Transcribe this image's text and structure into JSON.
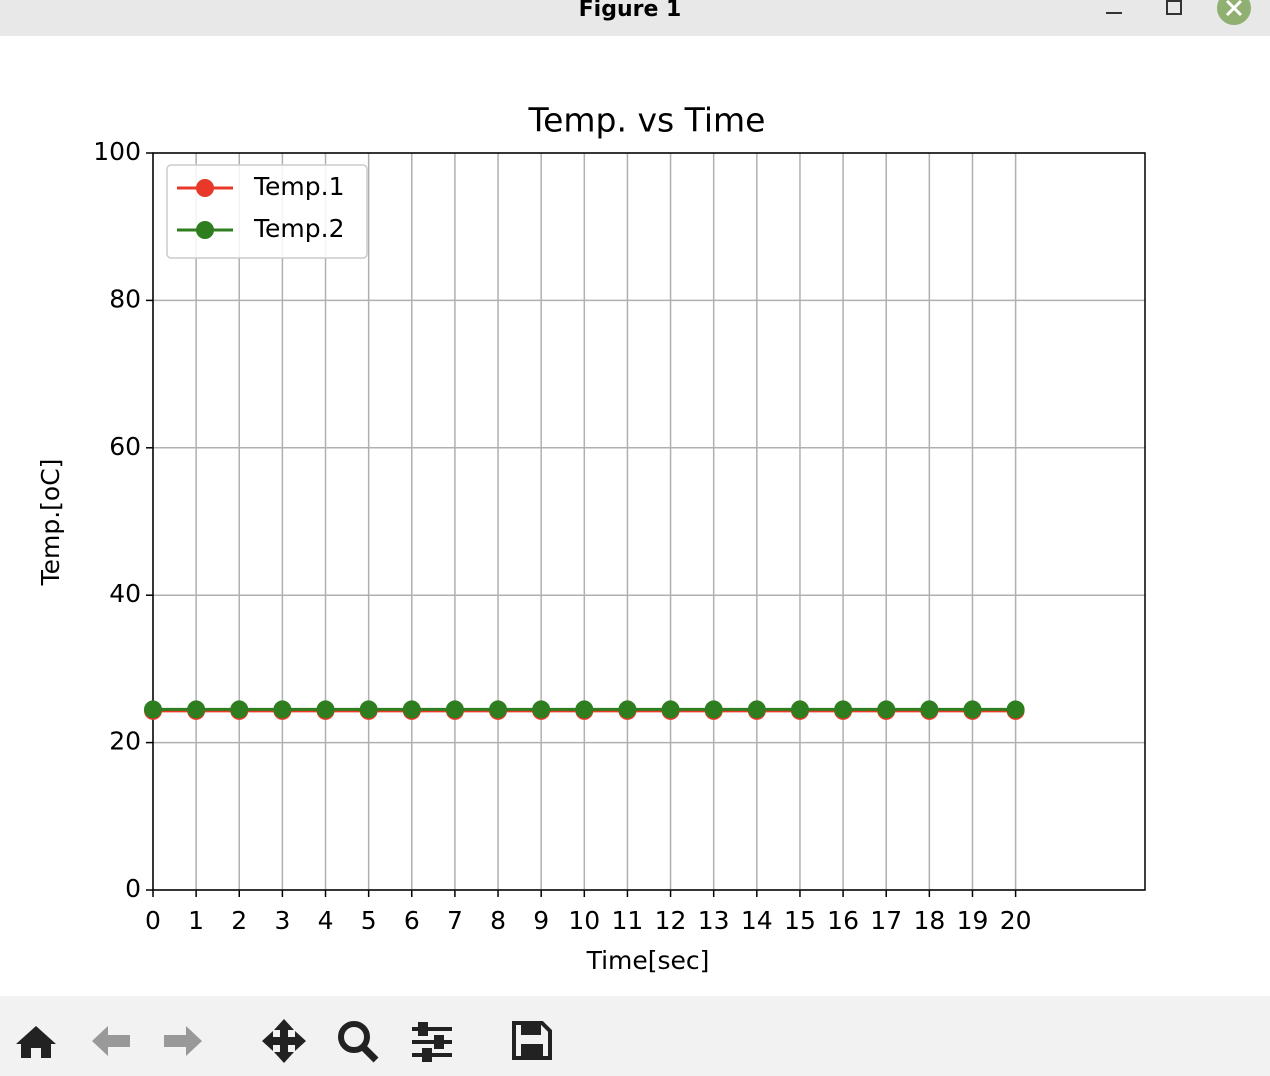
{
  "window": {
    "title": "Figure 1"
  },
  "chart_data": {
    "type": "line",
    "title": "Temp. vs Time",
    "x_label": "Time[sec]",
    "y_label": "Temp.[oC]",
    "x": [
      0,
      1,
      2,
      3,
      4,
      5,
      6,
      7,
      8,
      9,
      10,
      11,
      12,
      13,
      14,
      15,
      16,
      17,
      18,
      19,
      20
    ],
    "series": [
      {
        "name": "Temp.1",
        "color": "#e8382a",
        "values": [
          24.3,
          24.3,
          24.3,
          24.3,
          24.3,
          24.3,
          24.3,
          24.3,
          24.3,
          24.3,
          24.3,
          24.3,
          24.3,
          24.3,
          24.3,
          24.3,
          24.3,
          24.3,
          24.3,
          24.3,
          24.3
        ]
      },
      {
        "name": "Temp.2",
        "color": "#2e7d1e",
        "values": [
          24.5,
          24.5,
          24.5,
          24.5,
          24.5,
          24.5,
          24.5,
          24.5,
          24.5,
          24.5,
          24.5,
          24.5,
          24.5,
          24.5,
          24.5,
          24.5,
          24.5,
          24.5,
          24.5,
          24.5,
          24.5
        ]
      }
    ],
    "xlim": [
      0,
      23
    ],
    "xticks": [
      0,
      1,
      2,
      3,
      4,
      5,
      6,
      7,
      8,
      9,
      10,
      11,
      12,
      13,
      14,
      15,
      16,
      17,
      18,
      19,
      20
    ],
    "ylim": [
      0,
      100
    ],
    "yticks": [
      0,
      20,
      40,
      60,
      80,
      100
    ],
    "grid": true,
    "legend": "upper left"
  }
}
